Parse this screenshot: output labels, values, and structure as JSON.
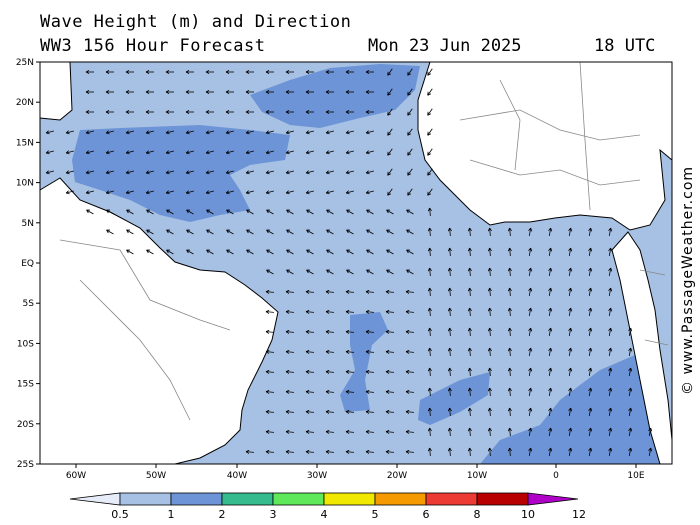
{
  "header": {
    "line1": "Wave Height (m) and Direction",
    "line2": "WW3 156 Hour Forecast",
    "date": "Mon 23 Jun 2025",
    "time": "18 UTC"
  },
  "credit": "© www.PassageWeather.com",
  "axes": {
    "lat_labels": [
      "25N",
      "20N",
      "15N",
      "10N",
      "5N",
      "EQ",
      "5S",
      "10S",
      "15S",
      "20S",
      "25S"
    ],
    "lon_labels": [
      "60W",
      "50W",
      "40W",
      "30W",
      "20W",
      "10W",
      "0",
      "10E"
    ]
  },
  "colorbar": {
    "labels": [
      "0.5",
      "1",
      "2",
      "3",
      "4",
      "5",
      "6",
      "8",
      "10",
      "12"
    ],
    "colors": [
      "#e6ecf8",
      "#a7c1e4",
      "#6d94d6",
      "#36bb8e",
      "#5ee85a",
      "#f0e800",
      "#f59a00",
      "#ec3b32",
      "#b80000",
      "#b000c8"
    ]
  },
  "colors": {
    "sea_low": "#a7c1e4",
    "sea_mid": "#6d94d6",
    "land": "#ffffff",
    "coast": "#000000"
  }
}
